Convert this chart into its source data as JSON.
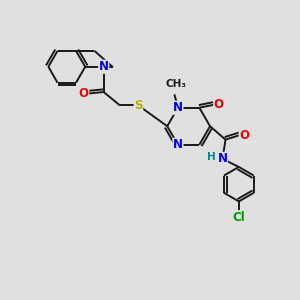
{
  "bg_color": "#e0e0e0",
  "bond_color": "#1a1a1a",
  "atom_colors": {
    "N": "#0000ee",
    "O": "#ee0000",
    "S": "#bbaa00",
    "Cl": "#009900",
    "H": "#008888",
    "C": "#1a1a1a"
  },
  "font_size": 8.5,
  "linewidth": 1.4
}
